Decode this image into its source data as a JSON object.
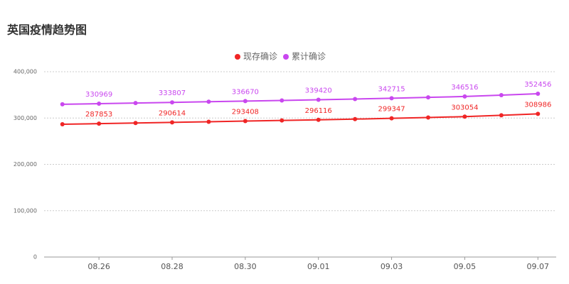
{
  "chart_data": {
    "type": "line",
    "title": "英国疫情趋势图",
    "categories": [
      null,
      "08.26",
      null,
      "08.28",
      null,
      "08.30",
      null,
      "09.01",
      null,
      "09.03",
      null,
      "09.05",
      null,
      "09.07"
    ],
    "series": [
      {
        "name": "现存确诊",
        "color": "#f02525",
        "values": [
          286500,
          287853,
          289200,
          290614,
          292000,
          293408,
          294800,
          296116,
          297700,
          299347,
          301200,
          303054,
          306000,
          308986
        ]
      },
      {
        "name": "累计确诊",
        "color": "#c947ef",
        "values": [
          329700,
          330969,
          332400,
          333807,
          335200,
          336670,
          338000,
          339420,
          341000,
          342715,
          344600,
          346516,
          349500,
          352456
        ]
      }
    ],
    "ylim": [
      0,
      400000
    ],
    "yticks": [
      0,
      {
        "value": 100000,
        "label": "100,000"
      },
      {
        "value": 200000,
        "label": "200,000"
      },
      {
        "value": 300000,
        "label": "300,000"
      },
      {
        "value": 400000,
        "label": "400,000"
      }
    ],
    "grid": true,
    "legend": "top"
  }
}
